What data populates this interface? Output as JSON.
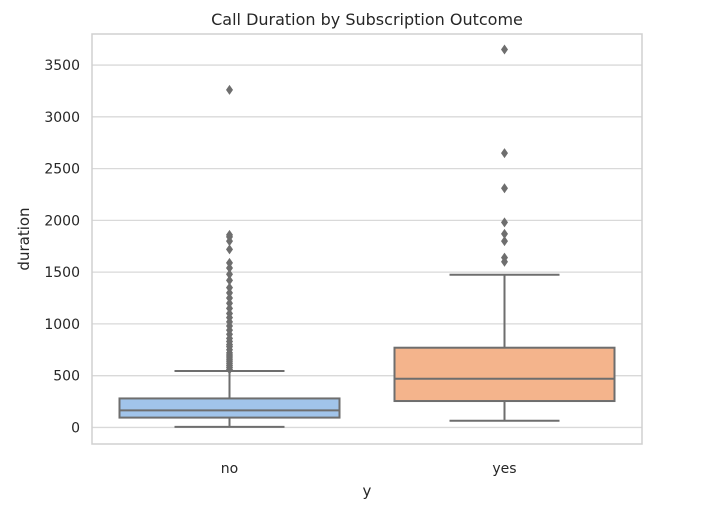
{
  "chart_data": {
    "type": "box",
    "title": "Call Duration by Subscription Outcome",
    "xlabel": "y",
    "ylabel": "duration",
    "categories": [
      "no",
      "yes"
    ],
    "ylim": [
      -160,
      3800
    ],
    "yticks": [
      0,
      500,
      1000,
      1500,
      2000,
      2500,
      3000,
      3500
    ],
    "ytick_labels": [
      "0",
      "500",
      "1000",
      "1500",
      "2000",
      "2500",
      "3000",
      "3500"
    ],
    "grid": "horizontal",
    "series": [
      {
        "category": "no",
        "color": "#a1c4ea",
        "whisker_low": 5,
        "q1": 95,
        "median": 165,
        "q3": 280,
        "whisker_high": 545,
        "outliers": [
          560,
          580,
          600,
          620,
          640,
          660,
          680,
          700,
          720,
          750,
          780,
          800,
          830,
          860,
          900,
          940,
          980,
          1020,
          1060,
          1100,
          1150,
          1200,
          1250,
          1300,
          1350,
          1420,
          1480,
          1540,
          1590,
          1720,
          1800,
          1840,
          1860,
          3260
        ]
      },
      {
        "category": "yes",
        "color": "#f4b48c",
        "whisker_low": 65,
        "q1": 255,
        "median": 470,
        "q3": 770,
        "whisker_high": 1475,
        "outliers": [
          1600,
          1640,
          1800,
          1870,
          1980,
          2310,
          2650,
          3650
        ]
      }
    ],
    "line_color": "#6e6e6e",
    "grid_color": "#d9d9d9",
    "frame_color": "#d0d0d0"
  }
}
